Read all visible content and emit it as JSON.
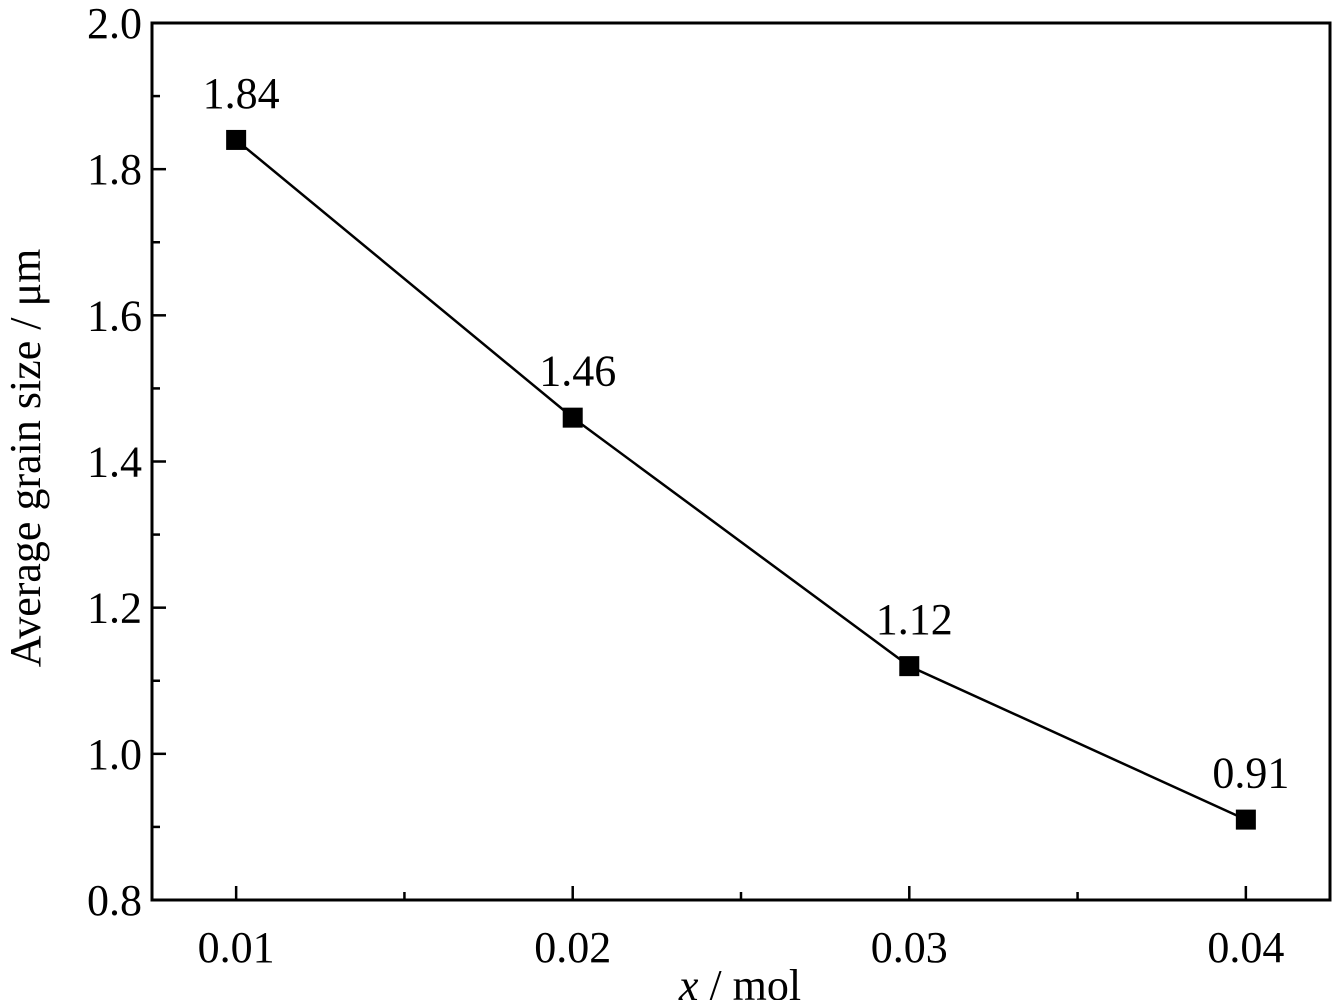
{
  "chart_data": {
    "type": "line",
    "title": "",
    "xlabel_var": "x",
    "xlabel_unit": " / mol",
    "ylabel": "Average grain size / μm",
    "x": [
      0.01,
      0.02,
      0.03,
      0.04
    ],
    "series": [
      {
        "values": [
          1.84,
          1.46,
          1.12,
          0.91
        ],
        "data_labels": [
          "1.84",
          "1.46",
          "1.12",
          "0.91"
        ],
        "marker": "square",
        "color": "#000000"
      }
    ],
    "xlim": [
      0.0075,
      0.0425
    ],
    "ylim": [
      0.8,
      2.0
    ],
    "x_ticks": [
      0.01,
      0.02,
      0.03,
      0.04
    ],
    "x_tick_labels": [
      "0.01",
      "0.02",
      "0.03",
      "0.04"
    ],
    "x_minor_ticks": [
      0.015,
      0.025,
      0.035
    ],
    "y_ticks": [
      0.8,
      1.0,
      1.2,
      1.4,
      1.6,
      1.8,
      2.0
    ],
    "y_tick_labels": [
      "0.8",
      "1.0",
      "1.2",
      "1.4",
      "1.6",
      "1.8",
      "2.0"
    ],
    "y_minor_ticks": [
      0.9,
      1.1,
      1.3,
      1.5,
      1.7,
      1.9
    ],
    "grid": false,
    "legend": "none"
  }
}
